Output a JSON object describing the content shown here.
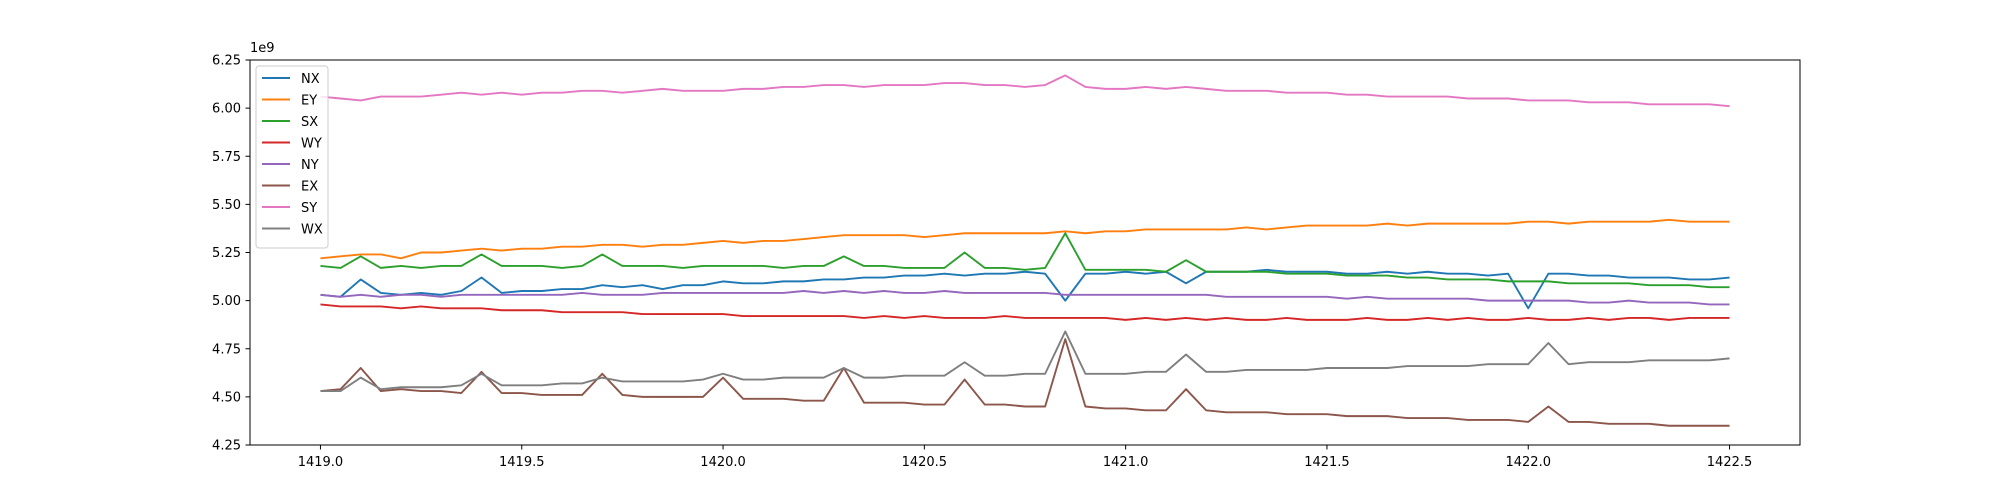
{
  "chart_data": {
    "type": "line",
    "y_offset_label": "1e9",
    "x": [
      1419.0,
      1419.05,
      1419.1,
      1419.15,
      1419.2,
      1419.25,
      1419.3,
      1419.35,
      1419.4,
      1419.45,
      1419.5,
      1419.55,
      1419.6,
      1419.65,
      1419.7,
      1419.75,
      1419.8,
      1419.85,
      1419.9,
      1419.95,
      1420.0,
      1420.05,
      1420.1,
      1420.15,
      1420.2,
      1420.25,
      1420.3,
      1420.35,
      1420.4,
      1420.45,
      1420.5,
      1420.55,
      1420.6,
      1420.65,
      1420.7,
      1420.75,
      1420.8,
      1420.85,
      1420.9,
      1420.95,
      1421.0,
      1421.05,
      1421.1,
      1421.15,
      1421.2,
      1421.25,
      1421.3,
      1421.35,
      1421.4,
      1421.45,
      1421.5,
      1421.55,
      1421.6,
      1421.65,
      1421.7,
      1421.75,
      1421.8,
      1421.85,
      1421.9,
      1421.95,
      1422.0,
      1422.05,
      1422.1,
      1422.15,
      1422.2,
      1422.25,
      1422.3,
      1422.35,
      1422.4,
      1422.45,
      1422.5
    ],
    "series": [
      {
        "name": "NX",
        "color": "#1f77b4",
        "values": [
          5.03,
          5.02,
          5.11,
          5.04,
          5.03,
          5.04,
          5.03,
          5.05,
          5.12,
          5.04,
          5.05,
          5.05,
          5.06,
          5.06,
          5.08,
          5.07,
          5.08,
          5.06,
          5.08,
          5.08,
          5.1,
          5.09,
          5.09,
          5.1,
          5.1,
          5.11,
          5.11,
          5.12,
          5.12,
          5.13,
          5.13,
          5.14,
          5.13,
          5.14,
          5.14,
          5.15,
          5.14,
          5.0,
          5.14,
          5.14,
          5.15,
          5.14,
          5.15,
          5.09,
          5.15,
          5.15,
          5.15,
          5.16,
          5.15,
          5.15,
          5.15,
          5.14,
          5.14,
          5.15,
          5.14,
          5.15,
          5.14,
          5.14,
          5.13,
          5.14,
          4.96,
          5.14,
          5.14,
          5.13,
          5.13,
          5.12,
          5.12,
          5.12,
          5.11,
          5.11,
          5.12
        ]
      },
      {
        "name": "EY",
        "color": "#ff7f0e",
        "values": [
          5.22,
          5.23,
          5.24,
          5.24,
          5.22,
          5.25,
          5.25,
          5.26,
          5.27,
          5.26,
          5.27,
          5.27,
          5.28,
          5.28,
          5.29,
          5.29,
          5.28,
          5.29,
          5.29,
          5.3,
          5.31,
          5.3,
          5.31,
          5.31,
          5.32,
          5.33,
          5.34,
          5.34,
          5.34,
          5.34,
          5.33,
          5.34,
          5.35,
          5.35,
          5.35,
          5.35,
          5.35,
          5.36,
          5.35,
          5.36,
          5.36,
          5.37,
          5.37,
          5.37,
          5.37,
          5.37,
          5.38,
          5.37,
          5.38,
          5.39,
          5.39,
          5.39,
          5.39,
          5.4,
          5.39,
          5.4,
          5.4,
          5.4,
          5.4,
          5.4,
          5.41,
          5.41,
          5.4,
          5.41,
          5.41,
          5.41,
          5.41,
          5.42,
          5.41,
          5.41,
          5.41
        ]
      },
      {
        "name": "SX",
        "color": "#2ca02c",
        "values": [
          5.18,
          5.17,
          5.23,
          5.17,
          5.18,
          5.17,
          5.18,
          5.18,
          5.24,
          5.18,
          5.18,
          5.18,
          5.17,
          5.18,
          5.24,
          5.18,
          5.18,
          5.18,
          5.17,
          5.18,
          5.18,
          5.18,
          5.18,
          5.17,
          5.18,
          5.18,
          5.23,
          5.18,
          5.18,
          5.17,
          5.17,
          5.17,
          5.25,
          5.17,
          5.17,
          5.16,
          5.17,
          5.35,
          5.16,
          5.16,
          5.16,
          5.16,
          5.15,
          5.21,
          5.15,
          5.15,
          5.15,
          5.15,
          5.14,
          5.14,
          5.14,
          5.13,
          5.13,
          5.13,
          5.12,
          5.12,
          5.11,
          5.11,
          5.11,
          5.1,
          5.1,
          5.1,
          5.09,
          5.09,
          5.09,
          5.09,
          5.08,
          5.08,
          5.08,
          5.07,
          5.07
        ]
      },
      {
        "name": "WY",
        "color": "#d62728",
        "values": [
          4.98,
          4.97,
          4.97,
          4.97,
          4.96,
          4.97,
          4.96,
          4.96,
          4.96,
          4.95,
          4.95,
          4.95,
          4.94,
          4.94,
          4.94,
          4.94,
          4.93,
          4.93,
          4.93,
          4.93,
          4.93,
          4.92,
          4.92,
          4.92,
          4.92,
          4.92,
          4.92,
          4.91,
          4.92,
          4.91,
          4.92,
          4.91,
          4.91,
          4.91,
          4.92,
          4.91,
          4.91,
          4.91,
          4.91,
          4.91,
          4.9,
          4.91,
          4.9,
          4.91,
          4.9,
          4.91,
          4.9,
          4.9,
          4.91,
          4.9,
          4.9,
          4.9,
          4.91,
          4.9,
          4.9,
          4.91,
          4.9,
          4.91,
          4.9,
          4.9,
          4.91,
          4.9,
          4.9,
          4.91,
          4.9,
          4.91,
          4.91,
          4.9,
          4.91,
          4.91,
          4.91
        ]
      },
      {
        "name": "NY",
        "color": "#9467bd",
        "values": [
          5.03,
          5.02,
          5.03,
          5.02,
          5.03,
          5.03,
          5.02,
          5.03,
          5.03,
          5.03,
          5.03,
          5.03,
          5.03,
          5.04,
          5.03,
          5.03,
          5.03,
          5.04,
          5.04,
          5.04,
          5.04,
          5.04,
          5.04,
          5.04,
          5.05,
          5.04,
          5.05,
          5.04,
          5.05,
          5.04,
          5.04,
          5.05,
          5.04,
          5.04,
          5.04,
          5.04,
          5.04,
          5.03,
          5.03,
          5.03,
          5.03,
          5.03,
          5.03,
          5.03,
          5.03,
          5.02,
          5.02,
          5.02,
          5.02,
          5.02,
          5.02,
          5.01,
          5.02,
          5.01,
          5.01,
          5.01,
          5.01,
          5.01,
          5.0,
          5.0,
          5.0,
          5.0,
          5.0,
          4.99,
          4.99,
          5.0,
          4.99,
          4.99,
          4.99,
          4.98,
          4.98
        ]
      },
      {
        "name": "EX",
        "color": "#8c564b",
        "values": [
          4.53,
          4.54,
          4.65,
          4.53,
          4.54,
          4.53,
          4.53,
          4.52,
          4.63,
          4.52,
          4.52,
          4.51,
          4.51,
          4.51,
          4.62,
          4.51,
          4.5,
          4.5,
          4.5,
          4.5,
          4.6,
          4.49,
          4.49,
          4.49,
          4.48,
          4.48,
          4.65,
          4.47,
          4.47,
          4.47,
          4.46,
          4.46,
          4.59,
          4.46,
          4.46,
          4.45,
          4.45,
          4.8,
          4.45,
          4.44,
          4.44,
          4.43,
          4.43,
          4.54,
          4.43,
          4.42,
          4.42,
          4.42,
          4.41,
          4.41,
          4.41,
          4.4,
          4.4,
          4.4,
          4.39,
          4.39,
          4.39,
          4.38,
          4.38,
          4.38,
          4.37,
          4.45,
          4.37,
          4.37,
          4.36,
          4.36,
          4.36,
          4.35,
          4.35,
          4.35,
          4.35
        ]
      },
      {
        "name": "SY",
        "color": "#e377c2",
        "values": [
          6.06,
          6.05,
          6.04,
          6.06,
          6.06,
          6.06,
          6.07,
          6.08,
          6.07,
          6.08,
          6.07,
          6.08,
          6.08,
          6.09,
          6.09,
          6.08,
          6.09,
          6.1,
          6.09,
          6.09,
          6.09,
          6.1,
          6.1,
          6.11,
          6.11,
          6.12,
          6.12,
          6.11,
          6.12,
          6.12,
          6.12,
          6.13,
          6.13,
          6.12,
          6.12,
          6.11,
          6.12,
          6.17,
          6.11,
          6.1,
          6.1,
          6.11,
          6.1,
          6.11,
          6.1,
          6.09,
          6.09,
          6.09,
          6.08,
          6.08,
          6.08,
          6.07,
          6.07,
          6.06,
          6.06,
          6.06,
          6.06,
          6.05,
          6.05,
          6.05,
          6.04,
          6.04,
          6.04,
          6.03,
          6.03,
          6.03,
          6.02,
          6.02,
          6.02,
          6.02,
          6.01
        ]
      },
      {
        "name": "WX",
        "color": "#7f7f7f",
        "values": [
          4.53,
          4.53,
          4.6,
          4.54,
          4.55,
          4.55,
          4.55,
          4.56,
          4.62,
          4.56,
          4.56,
          4.56,
          4.57,
          4.57,
          4.6,
          4.58,
          4.58,
          4.58,
          4.58,
          4.59,
          4.62,
          4.59,
          4.59,
          4.6,
          4.6,
          4.6,
          4.65,
          4.6,
          4.6,
          4.61,
          4.61,
          4.61,
          4.68,
          4.61,
          4.61,
          4.62,
          4.62,
          4.84,
          4.62,
          4.62,
          4.62,
          4.63,
          4.63,
          4.72,
          4.63,
          4.63,
          4.64,
          4.64,
          4.64,
          4.64,
          4.65,
          4.65,
          4.65,
          4.65,
          4.66,
          4.66,
          4.66,
          4.66,
          4.67,
          4.67,
          4.67,
          4.78,
          4.67,
          4.68,
          4.68,
          4.68,
          4.69,
          4.69,
          4.69,
          4.69,
          4.7
        ]
      }
    ],
    "xlim": [
      1418.825,
      1422.675
    ],
    "ylim": [
      4.25,
      6.25
    ],
    "xticks": [
      {
        "value": 1419.0,
        "label": "1419.0"
      },
      1419.5,
      {
        "value": 1420.0,
        "label": "1420.0"
      },
      1420.5,
      {
        "value": 1421.0,
        "label": "1421.0"
      },
      1421.5,
      {
        "value": 1422.0,
        "label": "1422.0"
      },
      1422.5
    ],
    "yticks": [
      4.25,
      {
        "value": 4.5,
        "label": "4.50"
      },
      4.75,
      {
        "value": 5.0,
        "label": "5.00"
      },
      5.25,
      {
        "value": 5.5,
        "label": "5.50"
      },
      5.75,
      {
        "value": 6.0,
        "label": "6.00"
      },
      6.25
    ],
    "grid": false,
    "legend": "upper-left"
  }
}
